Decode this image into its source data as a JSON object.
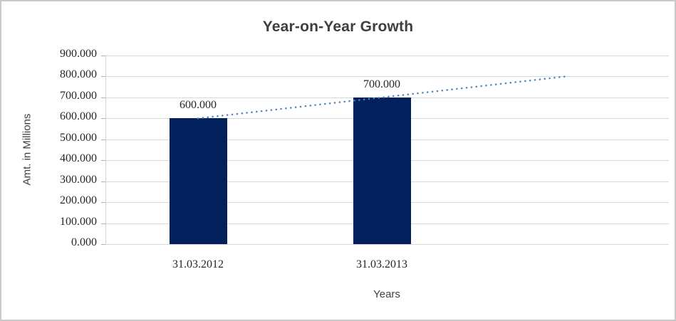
{
  "frame": {
    "background": "#ffffff",
    "border_color": "#c9c9c9"
  },
  "chart_data": {
    "type": "bar",
    "title": "Year-on-Year Growth",
    "categories": [
      "31.03.2012",
      "31.03.2013"
    ],
    "values": [
      600,
      700
    ],
    "value_labels": [
      "600.000",
      "700.000"
    ],
    "xlabel": "Years",
    "ylabel": "Amt. in Millions",
    "ylim": [
      0,
      900
    ],
    "ytick_step": 100,
    "ytick_labels": [
      "0.000",
      "100.000",
      "200.000",
      "300.000",
      "400.000",
      "500.000",
      "600.000",
      "700.000",
      "800.000",
      "900.000"
    ],
    "grid": true,
    "legend": "none",
    "bar_color": "#02215c",
    "gridline_color": "#d9d9d9",
    "text_color": "#262626",
    "title_color": "#3f3f3f",
    "trendline": {
      "type": "linear",
      "style": "dotted",
      "color": "#4e81bd",
      "start_value": 600,
      "end_value": 800,
      "forecast_periods": 1
    }
  }
}
